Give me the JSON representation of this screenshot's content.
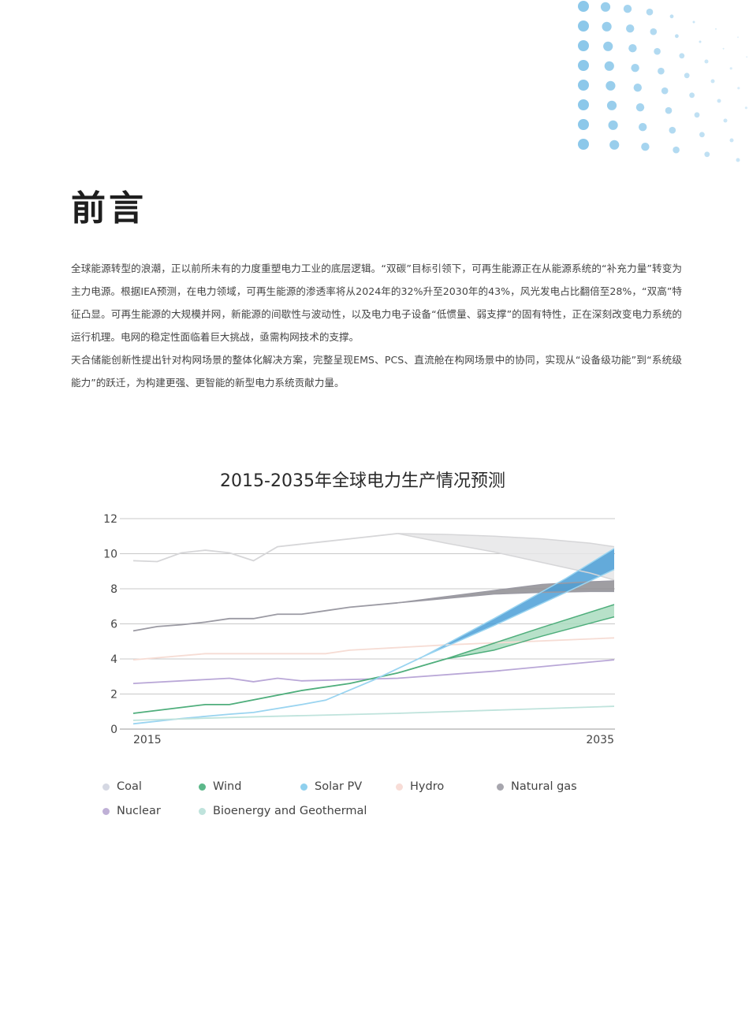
{
  "page": {
    "heading": "前言",
    "paragraphs": [
      "全球能源转型的浪潮，正以前所未有的力度重塑电力工业的底层逻辑。“双碳”目标引领下，可再生能源正在从能源系统的“补充力量”转变为主力电源。根据IEA预测，在电力领域，可再生能源的渗透率将从2024年的32%升至2030年的43%，风光发电占比翻倍至28%，“双高”特征凸显。可再生能源的大规模并网，新能源的间歇性与波动性，以及电力电子设备“低惯量、弱支撑”的固有特性，正在深刻改变电力系统的运行机理。电网的稳定性面临着巨大挑战，亟需构网技术的支撑。",
      "天合储能创新性提出针对构网场景的整体化解决方案，完整呈现EMS、PCS、直流舱在构网场景中的协同，实现从“设备级功能”到“系统级能力”的跃迁，为构建更强、更智能的新型电力系统贡献力量。"
    ]
  },
  "chart_data": {
    "type": "line",
    "title": "2015-2035年全球电力生产情况预测",
    "xlabel": "",
    "ylabel": "",
    "xlim": [
      2015,
      2035
    ],
    "ylim": [
      0,
      12
    ],
    "x_tick_labels": [
      "2015",
      "2035"
    ],
    "y_ticks": [
      0,
      2,
      4,
      6,
      8,
      10,
      12
    ],
    "grid": true,
    "legend_position": "bottom",
    "series": [
      {
        "name": "Coal",
        "color": "#d6d6d8",
        "legend_color": "#d5d8e3",
        "band_color": "#e6e6e8",
        "values": [
          [
            2015,
            9.6
          ],
          [
            2016,
            9.55
          ],
          [
            2017,
            10.05
          ],
          [
            2018,
            10.2
          ],
          [
            2019,
            10.05
          ],
          [
            2020,
            9.6
          ],
          [
            2021,
            10.4
          ],
          [
            2022,
            10.55
          ],
          [
            2023,
            10.7
          ],
          [
            2024,
            10.85
          ],
          [
            2025,
            11.0
          ],
          [
            2026,
            11.15
          ]
        ],
        "band": [
          [
            2026,
            11.15,
            11.15
          ],
          [
            2028,
            10.6,
            11.1
          ],
          [
            2030,
            10.1,
            11.0
          ],
          [
            2032,
            9.5,
            10.85
          ],
          [
            2034,
            8.9,
            10.6
          ],
          [
            2035,
            8.5,
            10.4
          ]
        ]
      },
      {
        "name": "Natural gas",
        "color": "#9b9aa3",
        "legend_color": "#a7a6ae",
        "band_color": "#8e8d92",
        "values": [
          [
            2015,
            5.6
          ],
          [
            2016,
            5.85
          ],
          [
            2017,
            5.95
          ],
          [
            2018,
            6.1
          ],
          [
            2019,
            6.3
          ],
          [
            2020,
            6.3
          ],
          [
            2021,
            6.55
          ],
          [
            2022,
            6.55
          ],
          [
            2023,
            6.75
          ],
          [
            2024,
            6.95
          ],
          [
            2026,
            7.2
          ]
        ],
        "band": [
          [
            2026,
            7.2,
            7.2
          ],
          [
            2028,
            7.45,
            7.55
          ],
          [
            2030,
            7.7,
            7.9
          ],
          [
            2032,
            7.8,
            8.25
          ],
          [
            2034,
            7.85,
            8.4
          ],
          [
            2035,
            7.85,
            8.45
          ]
        ]
      },
      {
        "name": "Hydro",
        "color": "#f6dcd4",
        "legend_color": "#f8ddd7",
        "values": [
          [
            2015,
            3.95
          ],
          [
            2018,
            4.3
          ],
          [
            2023,
            4.3
          ],
          [
            2024,
            4.5
          ],
          [
            2028,
            4.8
          ],
          [
            2035,
            5.2
          ]
        ]
      },
      {
        "name": "Nuclear",
        "color": "#b9a7d7",
        "legend_color": "#bfb0d6",
        "values": [
          [
            2015,
            2.6
          ],
          [
            2019,
            2.9
          ],
          [
            2020,
            2.7
          ],
          [
            2021,
            2.9
          ],
          [
            2022,
            2.75
          ],
          [
            2026,
            2.9
          ],
          [
            2030,
            3.3
          ],
          [
            2035,
            3.95
          ]
        ]
      },
      {
        "name": "Wind",
        "color": "#4fae7c",
        "legend_color": "#5cb88a",
        "band_color": "#aadcc0",
        "values": [
          [
            2015,
            0.9
          ],
          [
            2018,
            1.4
          ],
          [
            2019,
            1.4
          ],
          [
            2022,
            2.2
          ],
          [
            2024,
            2.6
          ],
          [
            2026,
            3.2
          ],
          [
            2027,
            3.6
          ],
          [
            2028,
            4.0
          ]
        ],
        "band": [
          [
            2028,
            4.0,
            4.0
          ],
          [
            2030,
            4.5,
            4.9
          ],
          [
            2032,
            5.3,
            5.8
          ],
          [
            2035,
            6.4,
            7.1
          ]
        ]
      },
      {
        "name": "Solar PV",
        "color": "#9ad4f0",
        "legend_color": "#8fd0ee",
        "band_color": "#4b9fd7",
        "values": [
          [
            2015,
            0.3
          ],
          [
            2017,
            0.6
          ],
          [
            2019,
            0.85
          ],
          [
            2020,
            0.95
          ],
          [
            2022,
            1.4
          ],
          [
            2023,
            1.65
          ],
          [
            2025,
            2.8
          ],
          [
            2027,
            4.1
          ]
        ],
        "band": [
          [
            2027,
            4.1,
            4.1
          ],
          [
            2030,
            5.9,
            6.3
          ],
          [
            2033,
            7.8,
            8.6
          ],
          [
            2035,
            9.1,
            10.3
          ]
        ]
      },
      {
        "name": "Bioenergy and Geothermal",
        "color": "#bfe3dc",
        "legend_color": "#bfe3dc",
        "values": [
          [
            2015,
            0.5
          ],
          [
            2020,
            0.7
          ],
          [
            2026,
            0.9
          ],
          [
            2035,
            1.3
          ]
        ]
      }
    ],
    "legend": [
      "Coal",
      "Wind",
      "Solar PV",
      "Hydro",
      "Natural gas",
      "Nuclear",
      "Bioenergy and Geothermal"
    ]
  }
}
